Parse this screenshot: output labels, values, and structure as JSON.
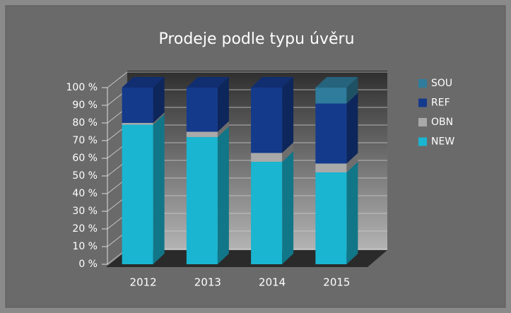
{
  "chart_data": {
    "type": "bar",
    "stacked": true,
    "title": "Prodeje podle typu úvěru",
    "categories": [
      "2012",
      "2013",
      "2014",
      "2015"
    ],
    "series": [
      {
        "name": "NEW",
        "color": "#1ab5d0",
        "values": [
          79,
          72,
          58,
          52
        ]
      },
      {
        "name": "OBN",
        "color": "#a9a9a9",
        "values": [
          1,
          3,
          5,
          5
        ]
      },
      {
        "name": "REF",
        "color": "#143a8c",
        "values": [
          20,
          25,
          37,
          34
        ]
      },
      {
        "name": "SOU",
        "color": "#2f7c9c",
        "values": [
          0,
          0,
          0,
          9
        ]
      }
    ],
    "ylim": [
      0,
      100
    ],
    "yticks": [
      {
        "value": 0,
        "label": "0 %"
      },
      {
        "value": 10,
        "label": "10 %"
      },
      {
        "value": 20,
        "label": "20 %"
      },
      {
        "value": 30,
        "label": "30 %"
      },
      {
        "value": 40,
        "label": "40 %"
      },
      {
        "value": 50,
        "label": "50 %"
      },
      {
        "value": 60,
        "label": "60 %"
      },
      {
        "value": 70,
        "label": "70 %"
      },
      {
        "value": 80,
        "label": "80 %"
      },
      {
        "value": 90,
        "label": "90 %"
      },
      {
        "value": 100,
        "label": "100 %"
      }
    ],
    "grid": true,
    "legend": "right"
  }
}
